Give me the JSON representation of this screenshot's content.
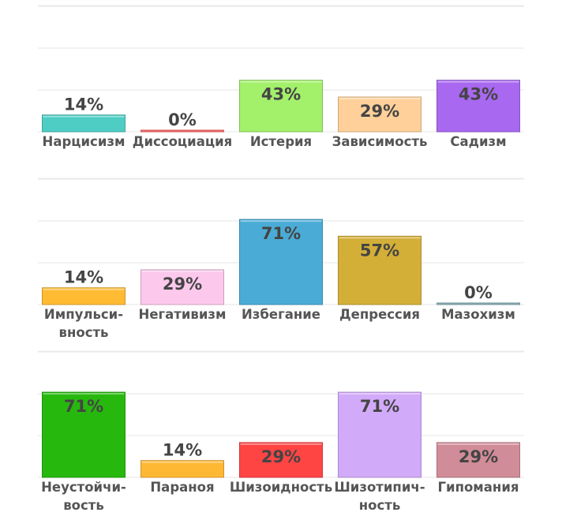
{
  "chart_data": [
    {
      "type": "bar",
      "ylim": [
        0,
        100
      ],
      "grid": true,
      "categories": [
        "Нарцисизм",
        "Диссоциация",
        "Истерия",
        "Зависимость",
        "Садизм"
      ],
      "values": [
        14,
        0,
        43,
        29,
        43
      ],
      "value_labels": [
        "14%",
        "0%",
        "43%",
        "29%",
        "43%"
      ],
      "colors": [
        "#4ecdc4",
        "#ff6b6b",
        "#a3f06b",
        "#ffd09a",
        "#a868f0"
      ]
    },
    {
      "type": "bar",
      "ylim": [
        0,
        100
      ],
      "grid": true,
      "categories": [
        "Импульси-вность",
        "Негативизм",
        "Избегание",
        "Депрессия",
        "Мазохизм"
      ],
      "values": [
        14,
        29,
        71,
        57,
        0
      ],
      "value_labels": [
        "14%",
        "29%",
        "71%",
        "57%",
        "0%"
      ],
      "colors": [
        "#ffbb33",
        "#fcc8ec",
        "#4aacd6",
        "#d4af37",
        "#8fb4bc"
      ]
    },
    {
      "type": "bar",
      "ylim": [
        0,
        100
      ],
      "grid": true,
      "categories": [
        "Неустойчи-вость",
        "Параноя",
        "Шизоидность",
        "Шизотипич-ность",
        "Гипомания"
      ],
      "values": [
        71,
        14,
        29,
        71,
        29
      ],
      "value_labels": [
        "71%",
        "14%",
        "29%",
        "71%",
        "29%"
      ],
      "colors": [
        "#27b80e",
        "#ffb833",
        "#ff4444",
        "#d2aafa",
        "#d08c98"
      ]
    }
  ]
}
